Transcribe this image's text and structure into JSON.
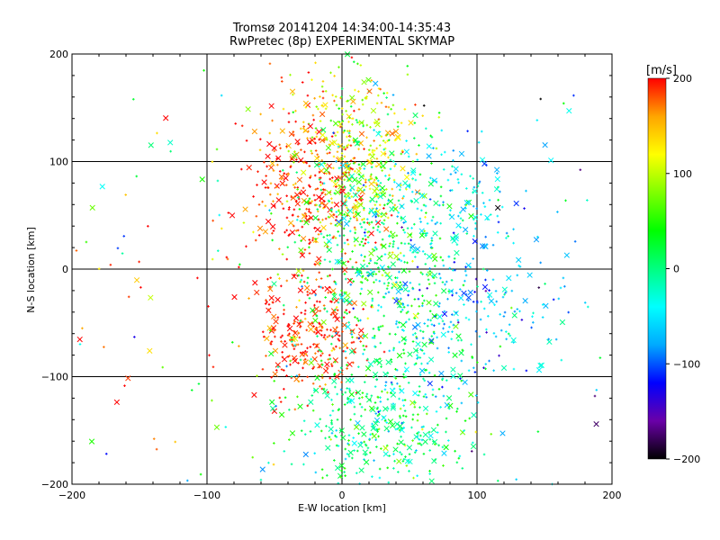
{
  "chart_data": {
    "type": "scatter",
    "title": "Tromsø 20141204 14:34:00-14:35:43",
    "subtitle": "RwPretec (8p) EXPERIMENTAL SKYMAP",
    "xlabel": "E-W location [km]",
    "ylabel": "N-S location [km]",
    "xlim": [
      -200,
      200
    ],
    "ylim": [
      -200,
      200
    ],
    "xticks": [
      -200,
      -100,
      0,
      100,
      200
    ],
    "yticks": [
      -200,
      -100,
      0,
      100,
      200
    ],
    "grid": true,
    "colorbar": {
      "label": "[m/s]",
      "range": [
        -200,
        200
      ],
      "ticks": [
        200,
        100,
        0,
        -100,
        -200
      ],
      "colormap": [
        "#000000",
        "#6a00a8",
        "#0000ff",
        "#00aaff",
        "#00ffff",
        "#00ff80",
        "#00ff00",
        "#80ff00",
        "#ffff00",
        "#ffa500",
        "#ff0000"
      ]
    },
    "marker_styles": [
      "x (large)",
      "+ (small)"
    ],
    "clusters": [
      {
        "x_mean": -25,
        "y_mean": 80,
        "x_sd": 22,
        "y_sd": 40,
        "count": 320,
        "v_mean": 190,
        "v_sd": 25
      },
      {
        "x_mean": 15,
        "y_mean": 90,
        "x_sd": 18,
        "y_sd": 30,
        "count": 180,
        "v_mean": 130,
        "v_sd": 40
      },
      {
        "x_mean": -25,
        "y_mean": -60,
        "x_sd": 20,
        "y_sd": 25,
        "count": 260,
        "v_mean": 195,
        "v_sd": 20
      },
      {
        "x_mean": 20,
        "y_mean": 20,
        "x_sd": 30,
        "y_sd": 60,
        "count": 480,
        "v_mean": 25,
        "v_sd": 40
      },
      {
        "x_mean": 30,
        "y_mean": -140,
        "x_sd": 35,
        "y_sd": 40,
        "count": 460,
        "v_mean": 5,
        "v_sd": 40
      },
      {
        "x_mean": 70,
        "y_mean": 60,
        "x_sd": 35,
        "y_sd": 35,
        "count": 200,
        "v_mean": -45,
        "v_sd": 30
      },
      {
        "x_mean": 80,
        "y_mean": -40,
        "x_sd": 40,
        "y_sd": 35,
        "count": 220,
        "v_mean": -60,
        "v_sd": 35
      },
      {
        "x_mean": 0,
        "y_mean": 140,
        "x_sd": 25,
        "y_sd": 30,
        "count": 120,
        "v_mean": 110,
        "v_sd": 50
      },
      {
        "x_mean": -100,
        "y_mean": -30,
        "x_sd": 70,
        "y_sd": 110,
        "count": 110,
        "v_mean": 120,
        "v_sd": 110
      },
      {
        "x_mean": 130,
        "y_mean": -10,
        "x_sd": 50,
        "y_sd": 110,
        "count": 80,
        "v_mean": -80,
        "v_sd": 80
      }
    ]
  }
}
